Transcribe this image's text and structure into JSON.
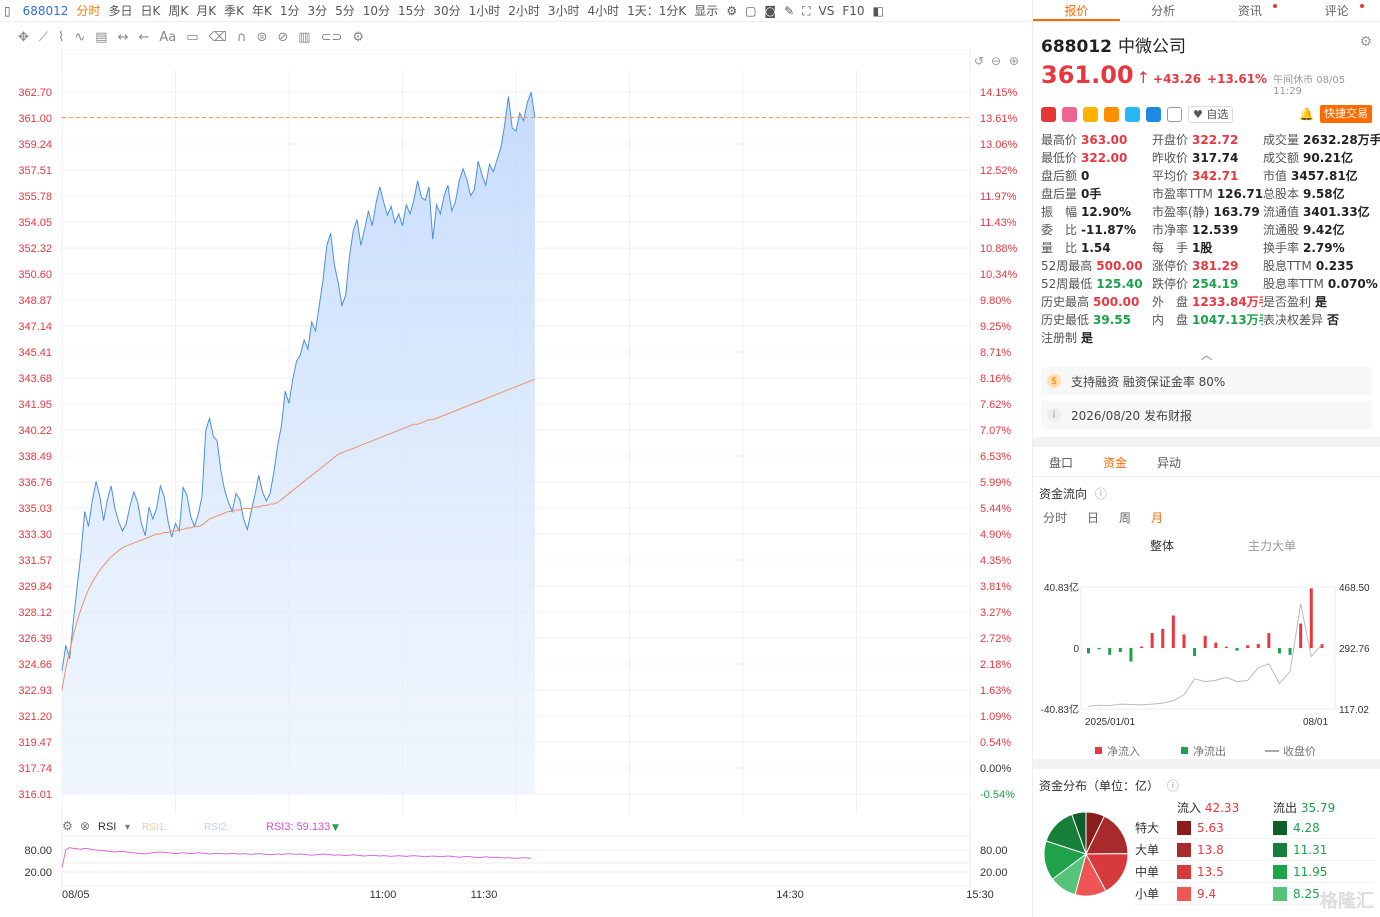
{
  "topbar": {
    "code": "688012",
    "periods": [
      "分时",
      "多日",
      "日K",
      "周K",
      "月K",
      "季K",
      "年K",
      "1分",
      "3分",
      "5分",
      "10分",
      "15分",
      "30分",
      "1小时",
      "2小时",
      "3小时",
      "4小时"
    ],
    "active_period": "分时",
    "interval": "1天：1分K",
    "display": "显示",
    "vs": "VS",
    "f10": "F10"
  },
  "toolbar2": {
    "aa": "Aa"
  },
  "chart": {
    "price_ticks": [
      "362.70",
      "361.00",
      "359.24",
      "357.51",
      "355.78",
      "354.05",
      "352.32",
      "350.60",
      "348.87",
      "347.14",
      "345.41",
      "343.68",
      "341.95",
      "340.22",
      "338.49",
      "336.76",
      "335.03",
      "333.30",
      "331.57",
      "329.84",
      "328.12",
      "326.39",
      "324.66",
      "322.93",
      "321.20",
      "319.47",
      "317.74",
      "316.01"
    ],
    "pct_ticks": [
      "14.15%",
      "13.61%",
      "13.06%",
      "12.52%",
      "11.97%",
      "11.43%",
      "10.88%",
      "10.34%",
      "9.80%",
      "9.25%",
      "8.71%",
      "8.16%",
      "7.62%",
      "7.07%",
      "6.53%",
      "5.99%",
      "5.44%",
      "4.90%",
      "4.35%",
      "3.81%",
      "3.27%",
      "2.72%",
      "2.18%",
      "1.63%",
      "1.09%",
      "0.54%",
      "0.00%",
      "-0.54%"
    ],
    "current_price_label": "361.00",
    "current_pct_label": "13.61%",
    "rsi_label": "RSI",
    "rsi1": "RSI1:",
    "rsi2": "RSI2:",
    "rsi3": "RSI3: 59.133",
    "rsi_ticks": [
      "80.00",
      "20.00"
    ],
    "time_ticks": [
      "08/05",
      "11:00",
      "11:30",
      "14:30",
      "15:30"
    ],
    "price_series": [
      324.2,
      325.9,
      325.0,
      327.5,
      329.8,
      332.0,
      334.8,
      333.8,
      335.5,
      336.8,
      335.8,
      334.2,
      335.6,
      336.5,
      335.0,
      334.1,
      333.5,
      334.0,
      335.2,
      336.1,
      335.4,
      334.0,
      333.2,
      335.1,
      334.3,
      335.0,
      336.5,
      335.8,
      334.2,
      333.1,
      334.0,
      333.5,
      336.4,
      335.9,
      334.5,
      333.8,
      334.6,
      335.8,
      340.2,
      341.0,
      339.8,
      339.5,
      337.5,
      336.2,
      335.4,
      334.8,
      336.0,
      335.6,
      334.3,
      333.6,
      334.8,
      335.9,
      337.2,
      336.1,
      335.5,
      336.0,
      337.4,
      339.2,
      340.5,
      342.8,
      342.0,
      343.6,
      344.8,
      345.2,
      346.2,
      345.6,
      347.4,
      346.8,
      348.5,
      350.2,
      352.5,
      353.3,
      351.2,
      350.0,
      348.5,
      349.2,
      351.8,
      353.5,
      354.2,
      352.5,
      353.6,
      354.8,
      353.8,
      355.3,
      356.4,
      355.4,
      354.5,
      355.1,
      354.0,
      354.6,
      353.8,
      355.2,
      354.6,
      355.5,
      356.8,
      355.7,
      355.5,
      356.4,
      352.9,
      355.2,
      354.6,
      355.8,
      356.5,
      354.8,
      355.4,
      356.8,
      357.6,
      356.9,
      355.8,
      356.2,
      358.1,
      357.2,
      356.5,
      357.9,
      357.4,
      358.2,
      359.0,
      360.5,
      362.4,
      360.3,
      360.1,
      361.3,
      360.8,
      362.0,
      362.7,
      361.0
    ],
    "avg_series": [
      322.9,
      324.4,
      325.5,
      326.6,
      327.5,
      328.3,
      329.0,
      329.6,
      330.1,
      330.5,
      330.9,
      331.2,
      331.5,
      331.8,
      332.0,
      332.2,
      332.4,
      332.5,
      332.6,
      332.7,
      332.8,
      332.9,
      333.0,
      333.1,
      333.2,
      333.3,
      333.3,
      333.4,
      333.4,
      333.5,
      333.5,
      333.6,
      333.6,
      333.7,
      333.7,
      333.8,
      333.8,
      333.9,
      334.1,
      334.3,
      334.4,
      334.5,
      334.6,
      334.7,
      334.8,
      334.8,
      334.9,
      334.9,
      335.0,
      335.0,
      335.0,
      335.1,
      335.1,
      335.2,
      335.2,
      335.3,
      335.3,
      335.4,
      335.6,
      335.8,
      336.0,
      336.2,
      336.4,
      336.6,
      336.8,
      337.0,
      337.2,
      337.4,
      337.6,
      337.8,
      338.0,
      338.2,
      338.4,
      338.6,
      338.7,
      338.8,
      338.9,
      339.0,
      339.1,
      339.2,
      339.3,
      339.4,
      339.5,
      339.6,
      339.7,
      339.8,
      339.9,
      340.0,
      340.1,
      340.2,
      340.3,
      340.4,
      340.5,
      340.6,
      340.6,
      340.7,
      340.8,
      340.9,
      340.9,
      341.0,
      341.1,
      341.2,
      341.3,
      341.4,
      341.5,
      341.6,
      341.7,
      341.8,
      341.9,
      342.0,
      342.1,
      342.2,
      342.3,
      342.4,
      342.5,
      342.6,
      342.7,
      342.8,
      342.9,
      343.0,
      343.1,
      343.2,
      343.3,
      343.4,
      343.5,
      343.6
    ],
    "rsi_series": [
      36,
      80,
      86,
      84,
      83,
      82,
      84,
      83,
      81,
      80,
      79,
      78,
      77,
      76,
      75,
      76,
      77,
      75,
      74,
      73,
      72,
      71,
      70,
      72,
      73,
      74,
      75,
      74,
      73,
      72,
      71,
      72,
      73,
      72,
      71,
      72,
      73,
      72,
      71,
      70,
      71,
      72,
      71,
      70,
      71,
      72,
      71,
      70,
      71,
      70,
      69,
      70,
      71,
      70,
      69,
      68,
      69,
      70,
      69,
      70,
      71,
      70,
      69,
      70,
      69,
      68,
      67,
      68,
      69,
      70,
      69,
      68,
      67,
      68,
      67,
      66,
      67,
      68,
      67,
      66,
      65,
      66,
      67,
      66,
      65,
      66,
      65,
      64,
      65,
      66,
      65,
      64,
      65,
      66,
      65,
      64,
      63,
      64,
      65,
      64,
      63,
      64,
      65,
      64,
      63,
      62,
      63,
      64,
      63,
      62,
      61,
      62,
      63,
      62,
      61,
      62,
      61,
      60,
      61,
      60,
      59,
      60,
      61,
      60,
      59.1
    ]
  },
  "right": {
    "tabs": [
      "报价",
      "分析",
      "资讯",
      "评论"
    ],
    "active_tab": "报价",
    "code": "688012",
    "name": "中微公司",
    "price": "361.00",
    "arrow": "↑",
    "change": "+43.26",
    "change_pct": "+13.61%",
    "status": "午间休市 08/05 11:29",
    "fav": "♥ 自选",
    "quick_trade": "快捷交易",
    "quotes": [
      {
        "label": "最高价",
        "value": "363.00",
        "color": "red"
      },
      {
        "label": "开盘价",
        "value": "322.72",
        "color": "red"
      },
      {
        "label": "成交量",
        "value": "2632.28万手",
        "color": "dark"
      },
      {
        "label": "最低价",
        "value": "322.00",
        "color": "red"
      },
      {
        "label": "昨收价",
        "value": "317.74",
        "color": "dark"
      },
      {
        "label": "成交额",
        "value": "90.21亿",
        "color": "dark"
      },
      {
        "label": "盘后额",
        "value": "0",
        "color": "dark"
      },
      {
        "label": "平均价",
        "value": "342.71",
        "color": "red"
      },
      {
        "label": "市值",
        "value": "3457.81亿",
        "color": "dark"
      },
      {
        "label": "盘后量",
        "value": "0手",
        "color": "dark"
      },
      {
        "label": "市盈率TTM",
        "value": "126.71",
        "color": "dark"
      },
      {
        "label": "总股本",
        "value": "9.58亿",
        "color": "dark"
      },
      {
        "label": "振　幅",
        "value": "12.90%",
        "color": "dark"
      },
      {
        "label": "市盈率(静)",
        "value": "163.79",
        "color": "dark"
      },
      {
        "label": "流通值",
        "value": "3401.33亿",
        "color": "dark"
      },
      {
        "label": "委　比",
        "value": "-11.87%",
        "color": "dark"
      },
      {
        "label": "市净率",
        "value": "12.539",
        "color": "dark"
      },
      {
        "label": "流通股",
        "value": "9.42亿",
        "color": "dark"
      },
      {
        "label": "量　比",
        "value": "1.54",
        "color": "dark"
      },
      {
        "label": "每　手",
        "value": "1股",
        "color": "dark"
      },
      {
        "label": "换手率",
        "value": "2.79%",
        "color": "dark"
      },
      {
        "label": "52周最高",
        "value": "500.00",
        "color": "red"
      },
      {
        "label": "涨停价",
        "value": "381.29",
        "color": "red"
      },
      {
        "label": "股息TTM",
        "value": "0.235",
        "color": "dark"
      },
      {
        "label": "52周最低",
        "value": "125.40",
        "color": "green"
      },
      {
        "label": "跌停价",
        "value": "254.19",
        "color": "green"
      },
      {
        "label": "股息率TTM",
        "value": "0.070%",
        "color": "dark"
      },
      {
        "label": "历史最高",
        "value": "500.00",
        "color": "red"
      },
      {
        "label": "外　盘",
        "value": "1233.84万手",
        "color": "red"
      },
      {
        "label": "是否盈利",
        "value": "是",
        "color": "dark"
      },
      {
        "label": "历史最低",
        "value": "39.55",
        "color": "green"
      },
      {
        "label": "内　盘",
        "value": "1047.13万手",
        "color": "green"
      },
      {
        "label": "表决权差异",
        "value": "否",
        "color": "dark"
      },
      {
        "label": "注册制",
        "value": "是",
        "color": "dark"
      }
    ],
    "notice1": "支持融资 融资保证金率 80%",
    "notice2": "2026/08/20 发布财报",
    "subtabs": [
      "盘口",
      "资金",
      "异动"
    ],
    "active_subtab": "资金",
    "flow_title": "资金流向",
    "periods": [
      "分时",
      "日",
      "周",
      "月"
    ],
    "active_period": "月",
    "modes": [
      "整体",
      "主力大单"
    ],
    "active_mode": "整体",
    "flow_ylabels": [
      "40.83亿",
      "0",
      "-40.83亿"
    ],
    "flow_rlabels": [
      "468.50",
      "292.76",
      "117.02"
    ],
    "flow_xlabels": [
      "2025/01/01",
      "08/01"
    ],
    "flow_legend": [
      "净流入",
      "净流出",
      "收盘价"
    ],
    "flow_bars": [
      -4,
      -1,
      -5,
      -3,
      -10,
      1,
      11,
      14,
      24,
      10,
      -6,
      9,
      4,
      1,
      -2,
      2,
      3,
      11,
      -4,
      -5,
      18,
      44,
      3
    ],
    "flow_close": [
      125,
      128,
      127,
      131,
      130,
      129,
      131,
      134,
      141,
      158,
      204,
      196,
      200,
      208,
      196,
      199,
      236,
      247,
      190,
      225,
      420,
      268,
      303
    ],
    "dist_title": "资金分布（单位：亿）",
    "dist": {
      "in_label": "流入",
      "in_total": "42.33",
      "out_label": "流出",
      "out_total": "35.79",
      "rows": [
        {
          "name": "特大",
          "in": "5.63",
          "out": "4.28"
        },
        {
          "name": "大单",
          "in": "13.8",
          "out": "11.31"
        },
        {
          "name": "中单",
          "in": "13.5",
          "out": "11.95"
        },
        {
          "name": "小单",
          "in": "9.4",
          "out": "8.25"
        }
      ]
    },
    "watermark": "格隆汇"
  }
}
